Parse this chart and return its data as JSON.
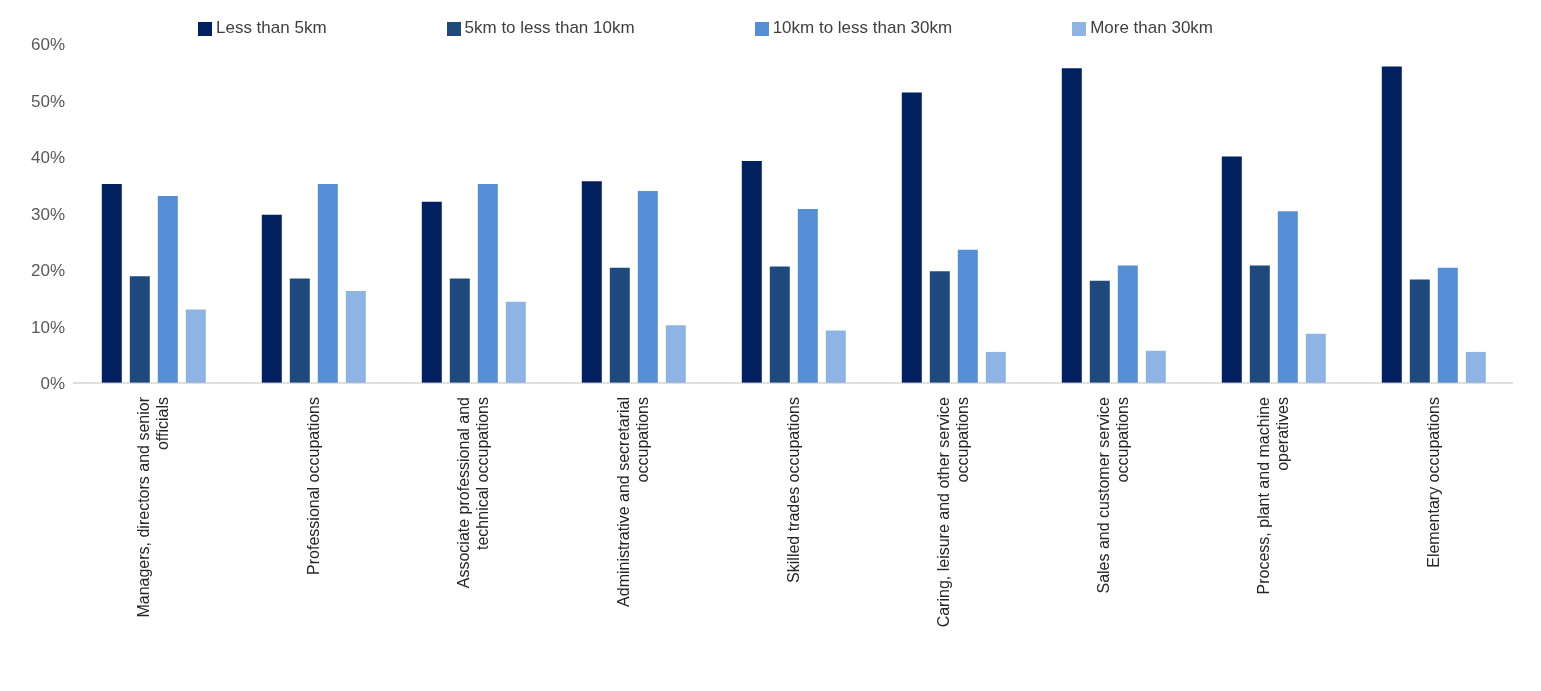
{
  "chart_data": {
    "type": "bar",
    "categories": [
      "Managers, directors and senior officials",
      "Professional occupations",
      "Associate professional and technical occupations",
      "Administrative and secretarial occupations",
      "Skilled trades occupations",
      "Caring, leisure and other service occupations",
      "Sales and customer service occupations",
      "Process, plant and machine operatives",
      "Elementary occupations"
    ],
    "series": [
      {
        "name": "Less than 5km",
        "color": "#002060",
        "values": [
          35.2,
          29.8,
          32.1,
          35.7,
          39.3,
          51.4,
          55.7,
          40.1,
          56.0
        ]
      },
      {
        "name": "5km to less than 10km",
        "color": "#1f497d",
        "values": [
          18.9,
          18.5,
          18.5,
          20.4,
          20.6,
          19.8,
          18.1,
          20.8,
          18.3
        ]
      },
      {
        "name": "10km to less than 30km",
        "color": "#558ed5",
        "values": [
          33.1,
          35.2,
          35.2,
          34.0,
          30.8,
          23.6,
          20.8,
          30.4,
          20.4
        ]
      },
      {
        "name": "More than 30km",
        "color": "#8eb4e3",
        "values": [
          13.0,
          16.3,
          14.4,
          10.2,
          9.3,
          5.5,
          5.7,
          8.7,
          5.5
        ]
      }
    ],
    "ylim": [
      0,
      60
    ],
    "yticks": [
      {
        "value": 0,
        "label": "0%"
      },
      {
        "value": 10,
        "label": "10%"
      },
      {
        "value": 20,
        "label": "20%"
      },
      {
        "value": 30,
        "label": "30%"
      },
      {
        "value": 40,
        "label": "40%"
      },
      {
        "value": 50,
        "label": "50%"
      },
      {
        "value": 60,
        "label": "60%"
      }
    ],
    "grid": false,
    "legend": "top"
  }
}
